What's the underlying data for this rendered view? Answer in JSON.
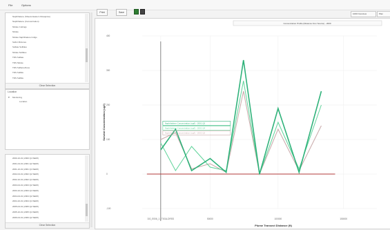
{
  "menu": {
    "file": "File",
    "options": "Options"
  },
  "params_panel": {
    "items": [
      "Naphthalene (Sheets Eastern Mosquitos)",
      "Naphthalene (Concentration)",
      "Nitrate Cuttings",
      "Nitrate",
      "Nitrate Naphthalene Indigo",
      "Sulfur Mixtures",
      "Sulfate Sulfides",
      "Nitrate Sulfides",
      "TDS Sulfate",
      "TDS Nitrate",
      "TDS Sulfamethoxe",
      "TDS Sulfide",
      "TDS Sulfide"
    ],
    "footer": "Clear Selection"
  },
  "location_panel": {
    "header": "Location",
    "tree_root": "Monitoring",
    "tree_child": "Location"
  },
  "dates_panel": {
    "items": [
      "2000-10-01 (2000 Q4 SEMI)",
      "2001-04-01 (2001 Q2 SEMI)",
      "2001-10-01 (2001 Q4 SEMI)",
      "2002-04-01 (2002 Q2 SEMI)",
      "2002-10-01 (2002 Q4 SEMI)",
      "2003-04-01 (2003 Q2 SEMI)",
      "2003-10-01 (2003 Q4 SEMI)",
      "2004-04-01 (2004 Q2 SEMI)",
      "2004-10-01 (2004 Q4 SEMI)",
      "2005-04-01 (2005 Q2 SEMI)",
      "2005-10-01 (2005 Q4 SEMI)",
      "2006-04-01 (2006 Q2 SEMI)"
    ],
    "footer": "Clear Selection"
  },
  "toolbar": {
    "print": "Print",
    "save": "Save"
  },
  "right_controls": {
    "dropdown": "1000 Overview",
    "button": "Plan",
    "field": "2000-10-01 (2000 Q4)"
  },
  "chart_data": {
    "type": "line",
    "title": "Concentration Profile (Distance from Source) - 2000",
    "xlabel": "Plume Transect Distance (ft)",
    "ylabel": "Solvent Concentration (ug/l)",
    "x": [
      0,
      12,
      25,
      40,
      53,
      67,
      80,
      95,
      112,
      130,
      148,
      163
    ],
    "xlim": [
      -15,
      175
    ],
    "ylim": [
      -100,
      400
    ],
    "yticks": [
      -100,
      0,
      100,
      200,
      300,
      400
    ],
    "xticks": [
      {
        "v": 0,
        "label": "DG_E006_1 / T0GA-DRSS"
      },
      {
        "v": 40,
        "label": "50000"
      },
      {
        "v": 95,
        "label": "100000"
      },
      {
        "v": 148,
        "label": "150000"
      }
    ],
    "series": [
      {
        "name": "Naphthalene Concentration (ug/l) - 2001 Q2",
        "color": "#2fb27a",
        "values": [
          70,
          130,
          10,
          45,
          5,
          330,
          0,
          190,
          5,
          240,
          null,
          null
        ]
      },
      {
        "name": "Naphthalene Concentration (ug/l) - 2001 Q4",
        "color": "#5fd39a",
        "values": [
          90,
          10,
          80,
          20,
          10,
          270,
          0,
          150,
          15,
          200,
          null,
          null
        ]
      },
      {
        "name": "Naphthalene Concentration (ug/l) - 2002 Q2",
        "color": "#c8a8a8",
        "values": [
          100,
          120,
          15,
          30,
          5,
          240,
          0,
          130,
          10,
          140,
          null,
          null
        ]
      }
    ],
    "baseline": {
      "color": "#b03a3a",
      "value": 0
    },
    "annotation": "Naphthalene Concentration",
    "grid": true
  }
}
